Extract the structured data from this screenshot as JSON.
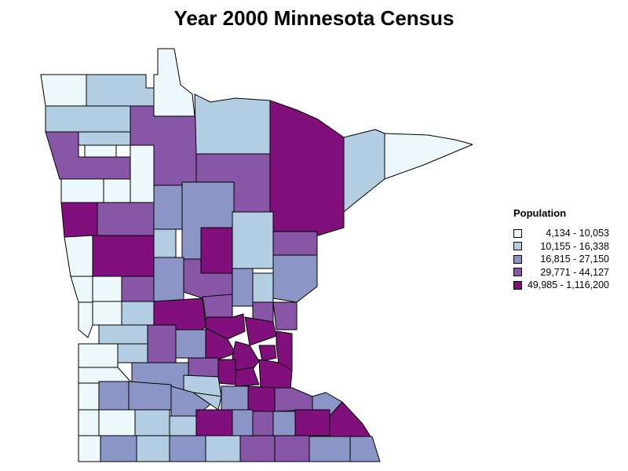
{
  "title": "Year 2000 Minnesota Census",
  "legend": {
    "title": "Population",
    "classes": [
      {
        "label": "4,134 - 10,053",
        "color": "#edf8fb"
      },
      {
        "label": "10,155 - 16,338",
        "color": "#b3cde3"
      },
      {
        "label": "16,815 - 27,150",
        "color": "#8c96c6"
      },
      {
        "label": "29,771 - 44,127",
        "color": "#8856a7"
      },
      {
        "label": "49,985 - 1,116,200",
        "color": "#810f7c"
      }
    ]
  },
  "map_data": {
    "region": "Minnesota",
    "unit": "county",
    "variable": "Population",
    "classification": "5 classes",
    "stroke_color": "#000000"
  }
}
